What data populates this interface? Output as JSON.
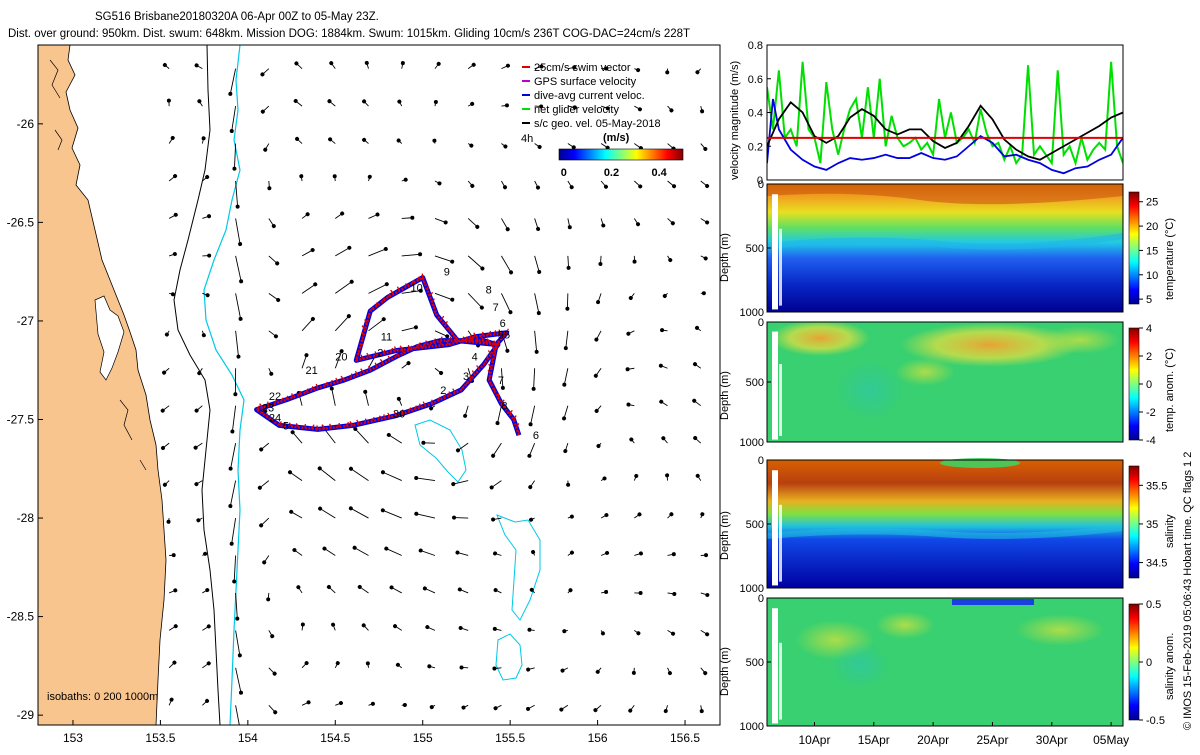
{
  "header": {
    "line1": "SG516 Brisbane20180320A 06-Apr 00Z to 05-May 23Z.",
    "line2": "Dist. over ground: 950km. Dist. swum: 648km. Mission DOG: 1884km. Swum: 1015km. Gliding 10cm/s 236T COG-DAC=24cm/s 228T"
  },
  "side_note": "© IMOS 15-Feb-2019 05:06:43 Hobart time. QC flags 1  2",
  "colors": {
    "land": "#f9c58f",
    "isobath_200": "#000000",
    "isobath_1000": "#00c8e6",
    "swim": "#e00000",
    "gps": "#c000c0",
    "dac": "#0000e0",
    "net": "#00e000",
    "geo": "#000000"
  },
  "chart_data": [
    {
      "type": "map",
      "name": "trajectory map",
      "x_ticks": [
        "153",
        "153.5",
        "154",
        "154.5",
        "155",
        "155.5",
        "156",
        "156.5"
      ],
      "x_values": [
        153,
        153.5,
        154,
        154.5,
        155,
        155.5,
        156,
        156.5
      ],
      "y_ticks": [
        "-26",
        "-26.5",
        "-27",
        "-27.5",
        "-28",
        "-28.5",
        "-29"
      ],
      "y_values": [
        -26,
        -26.5,
        -27,
        -27.5,
        -28,
        -28.5,
        -29
      ],
      "xlim": [
        152.8,
        156.7
      ],
      "ylim": [
        -29.05,
        -25.6
      ],
      "legend": [
        {
          "label": "25cm/s swim vector",
          "color": "#e00000"
        },
        {
          "label": "GPS surface velocity",
          "color": "#c000c0"
        },
        {
          "label": "dive-avg current veloc.",
          "color": "#0000e0"
        },
        {
          "label": "net glider velocity",
          "color": "#00e000"
        },
        {
          "label": "s/c geo. vel. 05-May-2018",
          "color": "#000000"
        }
      ],
      "time_label": "4h",
      "colorbar": {
        "title": "(m/s)",
        "ticks": [
          "0",
          "0.2",
          "0.4"
        ],
        "values": [
          0,
          0.2,
          0.4
        ],
        "range": [
          -0.02,
          0.5
        ]
      },
      "isobaths_label": "isobaths: 0   200  1000m",
      "track": [
        [
          155.55,
          -27.58
        ],
        [
          155.52,
          -27.5
        ],
        [
          155.45,
          -27.42
        ],
        [
          155.38,
          -27.3
        ],
        [
          155.42,
          -27.12
        ],
        [
          155.35,
          -27.1
        ],
        [
          155.2,
          -27.1
        ],
        [
          155.1,
          -27.1
        ],
        [
          154.97,
          -27.13
        ],
        [
          154.85,
          -27.18
        ],
        [
          154.7,
          -27.25
        ],
        [
          154.55,
          -27.3
        ],
        [
          154.4,
          -27.34
        ],
        [
          154.22,
          -27.4
        ],
        [
          154.05,
          -27.45
        ],
        [
          154.18,
          -27.53
        ],
        [
          154.4,
          -27.55
        ],
        [
          154.6,
          -27.53
        ],
        [
          154.85,
          -27.48
        ],
        [
          155.05,
          -27.42
        ],
        [
          155.22,
          -27.35
        ],
        [
          155.35,
          -27.22
        ],
        [
          155.43,
          -27.12
        ],
        [
          155.2,
          -27.1
        ],
        [
          155.08,
          -26.97
        ],
        [
          155.0,
          -26.78
        ],
        [
          154.8,
          -26.88
        ],
        [
          154.7,
          -26.95
        ],
        [
          154.62,
          -27.2
        ],
        [
          154.85,
          -27.15
        ],
        [
          155.15,
          -27.12
        ],
        [
          155.3,
          -27.08
        ],
        [
          155.48,
          -27.06
        ],
        [
          155.42,
          -27.12
        ]
      ],
      "day_labels": [
        {
          "label": "9",
          "lon": 155.12,
          "lat": -26.77
        },
        {
          "label": "10",
          "lon": 154.93,
          "lat": -26.85
        },
        {
          "label": "8",
          "lon": 155.36,
          "lat": -26.86
        },
        {
          "label": "7",
          "lon": 155.4,
          "lat": -26.95
        },
        {
          "label": "6",
          "lon": 155.44,
          "lat": -27.03
        },
        {
          "label": "55",
          "lon": 155.43,
          "lat": -27.09
        },
        {
          "label": "11",
          "lon": 154.76,
          "lat": -27.1
        },
        {
          "label": "20",
          "lon": 154.5,
          "lat": -27.2
        },
        {
          "label": "21",
          "lon": 154.33,
          "lat": -27.27
        },
        {
          "label": "2",
          "lon": 154.74,
          "lat": -27.18
        },
        {
          "label": "4",
          "lon": 155.28,
          "lat": -27.2
        },
        {
          "label": "3",
          "lon": 155.23,
          "lat": -27.3
        },
        {
          "label": "2",
          "lon": 155.1,
          "lat": -27.37
        },
        {
          "label": "7",
          "lon": 155.43,
          "lat": -27.32
        },
        {
          "label": "8",
          "lon": 155.45,
          "lat": -27.45
        },
        {
          "label": "6",
          "lon": 155.63,
          "lat": -27.6
        },
        {
          "label": "22",
          "lon": 154.12,
          "lat": -27.4
        },
        {
          "label": "23",
          "lon": 154.08,
          "lat": -27.46
        },
        {
          "label": "24",
          "lon": 154.12,
          "lat": -27.51
        },
        {
          "label": "5",
          "lon": 154.2,
          "lat": -27.55
        },
        {
          "label": "30",
          "lon": 154.83,
          "lat": -27.49
        }
      ],
      "flow_field": "cyclonic eddy offshore, strong southward East Australian Current along 153.9-154.1E"
    },
    {
      "type": "line",
      "name": "velocity magnitude",
      "ylabel": "velocity magnitude (m/s)",
      "ylim": [
        0,
        0.8
      ],
      "y_ticks": [
        "0",
        "0.2",
        "0.4",
        "0.6",
        "0.8"
      ],
      "y_values": [
        0,
        0.2,
        0.4,
        0.6,
        0.8
      ],
      "xlim_days": [
        0,
        30
      ],
      "swim_speed": 0.25,
      "series": [
        {
          "name": "dive-avg current veloc.",
          "color": "#0000e0",
          "x": [
            0,
            0.5,
            1,
            2,
            3,
            4,
            5,
            6,
            7,
            8,
            9,
            10,
            11,
            12,
            13,
            14,
            15,
            16,
            17,
            18,
            19,
            20,
            21,
            22,
            23,
            24,
            25,
            26,
            27,
            28,
            29,
            30
          ],
          "values": [
            0.1,
            0.48,
            0.3,
            0.18,
            0.12,
            0.08,
            0.06,
            0.1,
            0.13,
            0.12,
            0.13,
            0.15,
            0.13,
            0.13,
            0.16,
            0.13,
            0.12,
            0.14,
            0.2,
            0.26,
            0.22,
            0.14,
            0.15,
            0.12,
            0.1,
            0.06,
            0.04,
            0.07,
            0.08,
            0.12,
            0.15,
            0.25
          ]
        },
        {
          "name": "s/c geo. vel. 05-May-2018",
          "color": "#000000",
          "x": [
            0,
            1,
            2,
            3,
            4,
            5,
            6,
            7,
            8,
            9,
            10,
            11,
            12,
            13,
            14,
            15,
            16,
            17,
            18,
            19,
            20,
            21,
            22,
            23,
            24,
            25,
            26,
            27,
            28,
            29,
            30
          ],
          "values": [
            0.2,
            0.36,
            0.46,
            0.4,
            0.26,
            0.22,
            0.26,
            0.37,
            0.42,
            0.38,
            0.3,
            0.27,
            0.3,
            0.3,
            0.23,
            0.19,
            0.22,
            0.32,
            0.44,
            0.36,
            0.24,
            0.18,
            0.14,
            0.12,
            0.16,
            0.2,
            0.24,
            0.28,
            0.32,
            0.37,
            0.4
          ]
        },
        {
          "name": "net glider velocity",
          "color": "#00e000",
          "x": [
            0,
            0.5,
            1,
            1.5,
            2,
            2.5,
            3,
            3.5,
            4,
            4.5,
            5,
            5.5,
            6,
            6.5,
            7,
            7.5,
            8,
            8.5,
            9,
            9.5,
            10,
            10.5,
            11,
            11.5,
            12,
            12.5,
            13,
            13.5,
            14,
            14.5,
            15,
            15.5,
            16,
            16.5,
            17,
            17.5,
            18,
            18.5,
            19,
            19.5,
            20,
            20.5,
            21,
            21.5,
            22,
            22.5,
            23,
            23.5,
            24,
            24.5,
            25,
            25.5,
            26,
            26.5,
            27,
            27.5,
            28,
            28.5,
            29,
            29.5,
            30
          ],
          "values": [
            0.55,
            0.3,
            0.65,
            0.25,
            0.3,
            0.2,
            0.7,
            0.3,
            0.25,
            0.1,
            0.58,
            0.3,
            0.15,
            0.3,
            0.42,
            0.48,
            0.25,
            0.55,
            0.25,
            0.6,
            0.2,
            0.38,
            0.25,
            0.2,
            0.22,
            0.25,
            0.18,
            0.22,
            0.15,
            0.48,
            0.25,
            0.4,
            0.22,
            0.25,
            0.3,
            0.22,
            0.42,
            0.28,
            0.2,
            0.22,
            0.12,
            0.2,
            0.1,
            0.15,
            0.68,
            0.15,
            0.2,
            0.15,
            0.1,
            0.65,
            0.15,
            0.2,
            0.1,
            0.25,
            0.12,
            0.18,
            0.22,
            0.18,
            0.7,
            0.2,
            0.1
          ]
        }
      ]
    },
    {
      "type": "heatmap",
      "name": "temperature",
      "ylabel": "Depth (m)",
      "colorbar_label": "temperature (°C)",
      "y_ticks": [
        "0",
        "500",
        "1000"
      ],
      "y_values": [
        0,
        500,
        1000
      ],
      "cbar_ticks": [
        "5",
        "10",
        "15",
        "20",
        "25"
      ],
      "cbar_values": [
        5,
        10,
        15,
        20,
        25
      ],
      "range": [
        4,
        27
      ],
      "profile_depth": [
        0,
        100,
        200,
        300,
        400,
        500,
        700,
        1000
      ],
      "profile_values": [
        26,
        25,
        22,
        20,
        17,
        12,
        8,
        5
      ]
    },
    {
      "type": "heatmap",
      "name": "temp. anom.",
      "ylabel": "Depth (m)",
      "colorbar_label": "temp. anom. (°C)",
      "y_ticks": [
        "0",
        "500",
        "1000"
      ],
      "y_values": [
        0,
        500,
        1000
      ],
      "cbar_ticks": [
        "4",
        "2",
        "0",
        "-2",
        "-4"
      ],
      "cbar_values": [
        4,
        2,
        0,
        -2,
        -4
      ],
      "range": [
        -4,
        4
      ],
      "note": "warm anomaly (~2-3 °C) in upper 200 m near 8-10 Apr and 20-28 Apr, near zero elsewhere"
    },
    {
      "type": "heatmap",
      "name": "salinity",
      "ylabel": "Depth (m)",
      "colorbar_label": "salinity",
      "y_ticks": [
        "0",
        "500",
        "1000"
      ],
      "y_values": [
        0,
        500,
        1000
      ],
      "cbar_ticks": [
        "35.5",
        "35",
        "34.5"
      ],
      "cbar_values": [
        35.5,
        35,
        34.5
      ],
      "range": [
        34.3,
        35.75
      ],
      "profile_depth": [
        0,
        100,
        200,
        300,
        400,
        500,
        700,
        1000
      ],
      "profile_values": [
        35.45,
        35.6,
        35.55,
        35.4,
        35.2,
        34.8,
        34.5,
        34.45
      ]
    },
    {
      "type": "heatmap",
      "name": "salinity anom.",
      "ylabel": "Depth (m)",
      "colorbar_label": "salinity anom.",
      "y_ticks": [
        "0",
        "500",
        "1000"
      ],
      "y_values": [
        0,
        500,
        1000
      ],
      "cbar_ticks": [
        "0.5",
        "0",
        "-0.5"
      ],
      "cbar_values": [
        0.5,
        0,
        -0.5
      ],
      "range": [
        -0.5,
        0.5
      ],
      "x_ticks": [
        "10Apr",
        "15Apr",
        "20Apr",
        "25Apr",
        "30Apr",
        "05May"
      ],
      "x_days": [
        4,
        9,
        14,
        19,
        24,
        29
      ]
    }
  ]
}
